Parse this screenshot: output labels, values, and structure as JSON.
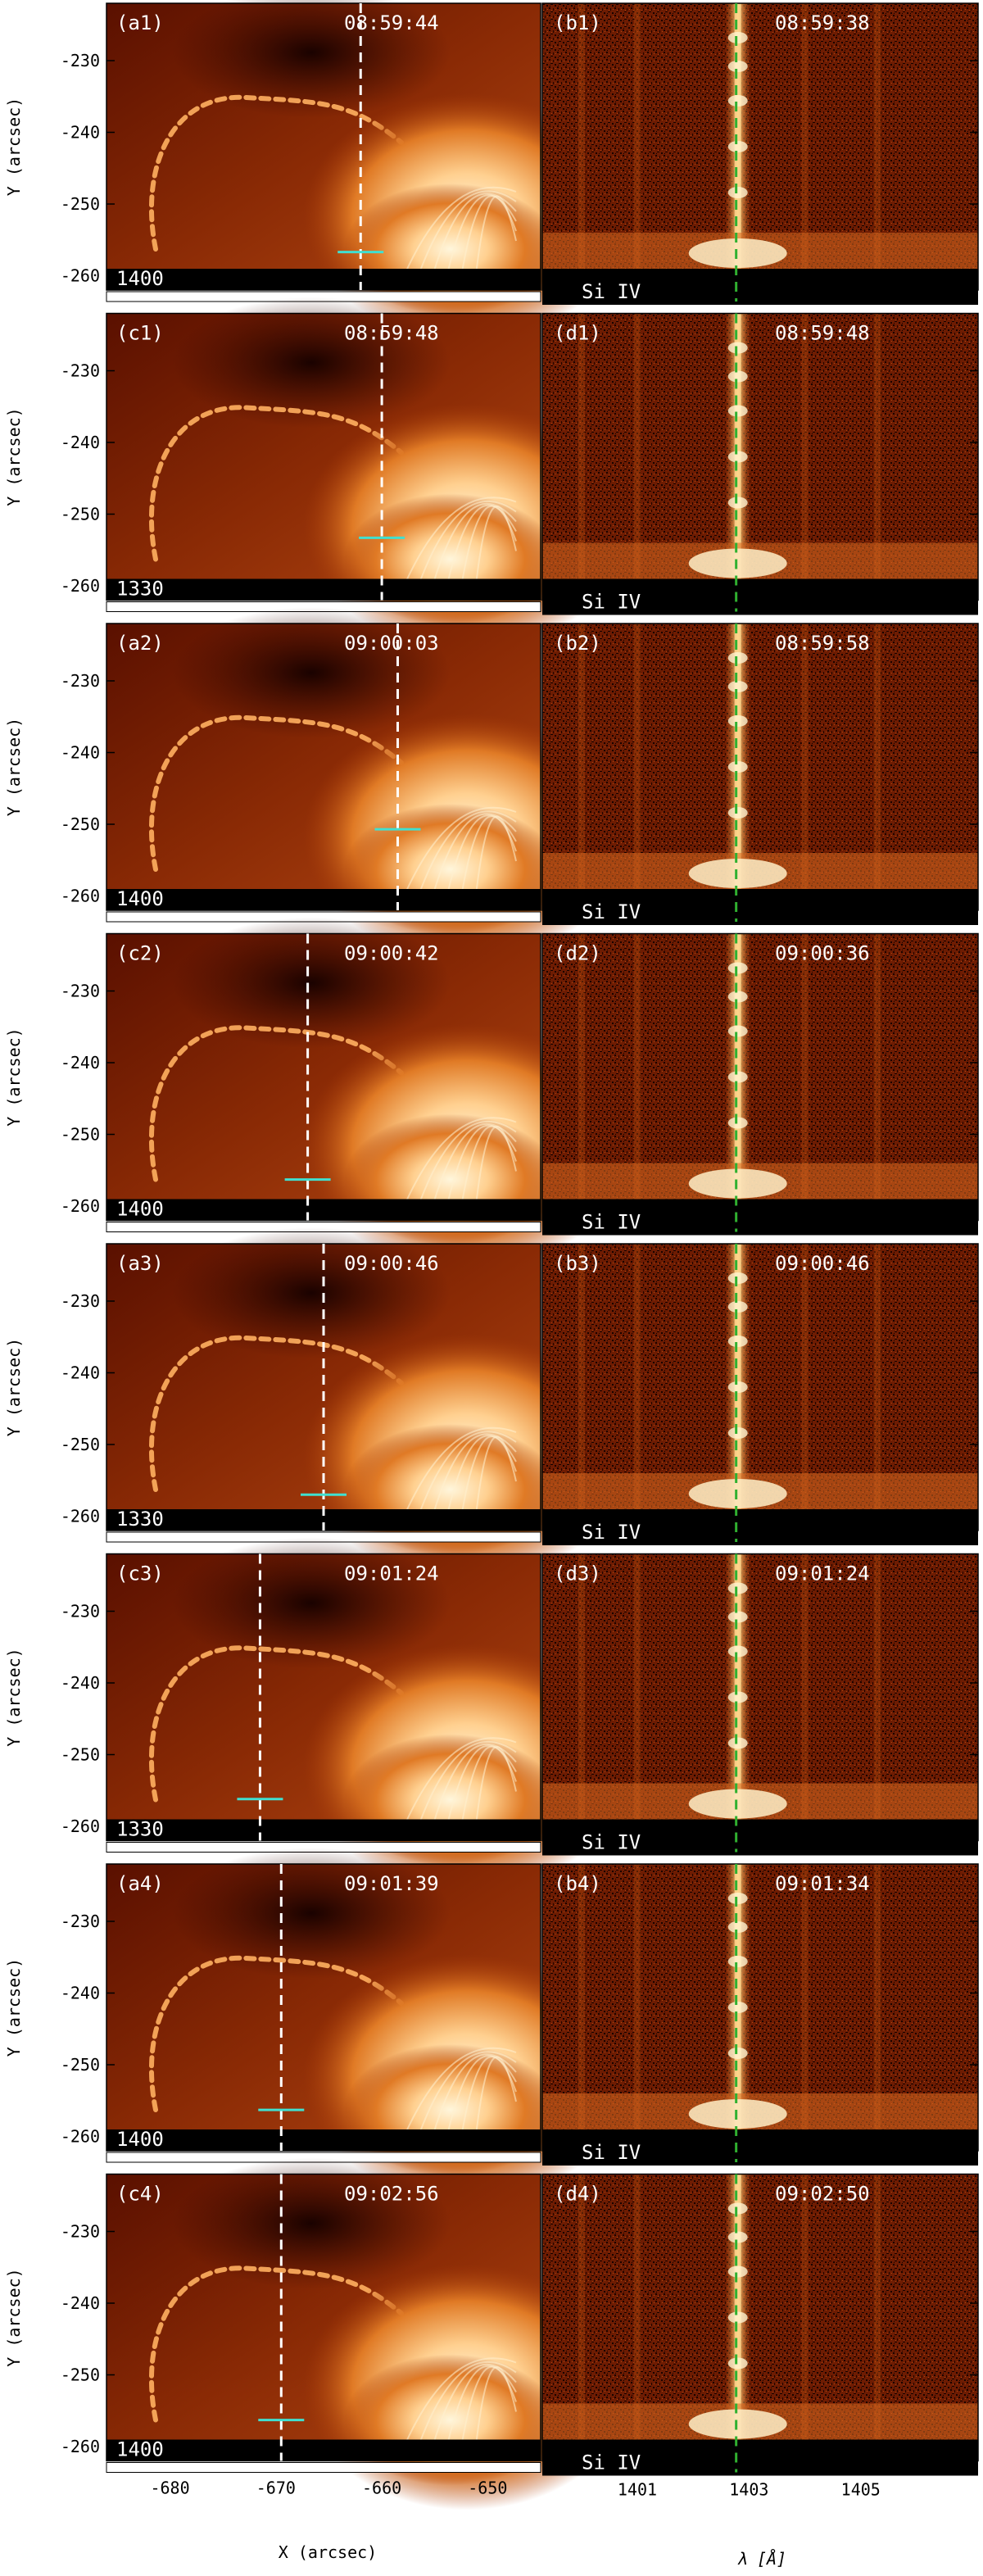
{
  "figure": {
    "rows": [
      {
        "left_label": "(a1)",
        "left_time": "08:59:44",
        "left_channel": "1400",
        "right_label": "(b1)",
        "right_time": "08:59:38",
        "right_line": "Si IV"
      },
      {
        "left_label": "(c1)",
        "left_time": "08:59:48",
        "left_channel": "1330",
        "right_label": "(d1)",
        "right_time": "08:59:48",
        "right_line": "Si IV"
      },
      {
        "left_label": "(a2)",
        "left_time": "09:00:03",
        "left_channel": "1400",
        "right_label": "(b2)",
        "right_time": "08:59:58",
        "right_line": "Si IV"
      },
      {
        "left_label": "(c2)",
        "left_time": "09:00:42",
        "left_channel": "1400",
        "right_label": "(d2)",
        "right_time": "09:00:36",
        "right_line": "Si IV"
      },
      {
        "left_label": "(a3)",
        "left_time": "09:00:46",
        "left_channel": "1330",
        "right_label": "(b3)",
        "right_time": "09:00:46",
        "right_line": "Si IV"
      },
      {
        "left_label": "(c3)",
        "left_time": "09:01:24",
        "left_channel": "1330",
        "right_label": "(d3)",
        "right_time": "09:01:24",
        "right_line": "Si IV"
      },
      {
        "left_label": "(a4)",
        "left_time": "09:01:39",
        "left_channel": "1400",
        "right_label": "(b4)",
        "right_time": "09:01:34",
        "right_line": "Si IV"
      },
      {
        "left_label": "(c4)",
        "left_time": "09:02:56",
        "left_channel": "1400",
        "right_label": "(d4)",
        "right_time": "09:02:50",
        "right_line": "Si IV"
      }
    ],
    "y_axis_label": "Y (arcsec)",
    "y_ticks": [
      "-230",
      "-240",
      "-250",
      "-260"
    ],
    "x_axis_label": "X (arcsec)",
    "x_ticks": [
      "-680",
      "-670",
      "-660",
      "-650"
    ],
    "lambda_axis_label": "λ [Å]",
    "lambda_ticks": [
      "1401",
      "1403",
      "1405"
    ],
    "slit_x": [
      -662,
      -660,
      -658.5,
      -667,
      -665.5,
      -671.5,
      -669.5,
      -669.5
    ],
    "marker_y": [
      -256.7,
      -253.3,
      -250.7,
      -256.3,
      -257.0,
      -256.2,
      -256.3,
      -256.3
    ],
    "colors": {
      "image_dark": "#6a1400",
      "image_bright": "#fff3d0",
      "slit": "#ffffff",
      "marker": "#40e0d0",
      "line_center": "#30b030"
    }
  }
}
